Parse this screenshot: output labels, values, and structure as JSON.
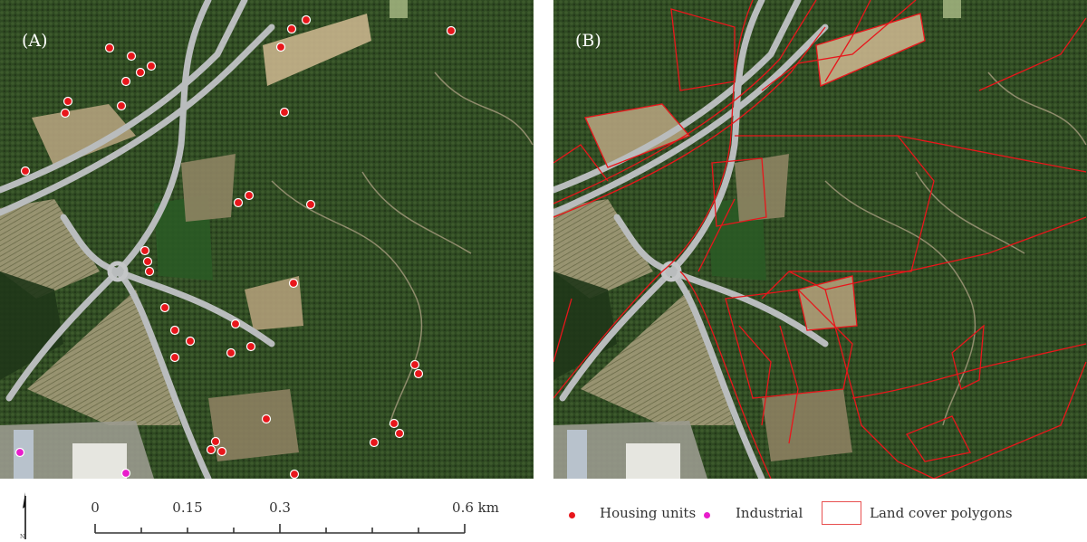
{
  "panels": [
    {
      "label": "(A)",
      "content": "satellite-imagery-with-points"
    },
    {
      "label": "(B)",
      "content": "satellite-imagery-with-land-cover-polygons"
    }
  ],
  "scale_bar": {
    "labels": [
      "0",
      "0.15",
      "0.3",
      "0.6 km"
    ],
    "north_arrow": "north-arrow-icon",
    "north_label": "N"
  },
  "legend": {
    "items": [
      {
        "label": "Housing units",
        "symbol": "dot",
        "color": "#e8161b"
      },
      {
        "label": "Industrial",
        "symbol": "dot",
        "color": "#e81ccb"
      },
      {
        "label": "Land cover polygons",
        "symbol": "rectangle-outline",
        "color": "#e83a3a"
      }
    ]
  },
  "colors": {
    "forest": "#2f4a22",
    "road": "#b9bcbd",
    "polygon": "#e8161b"
  }
}
